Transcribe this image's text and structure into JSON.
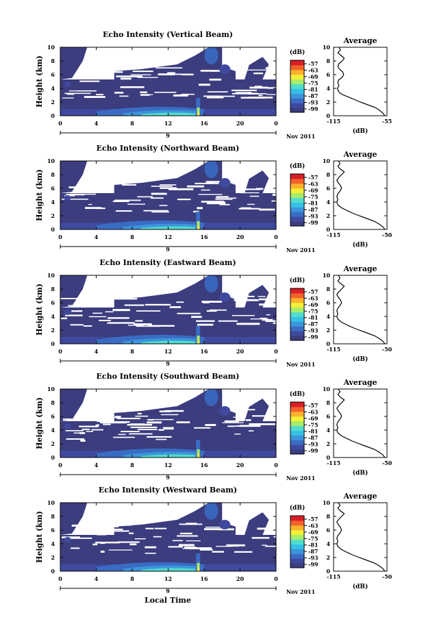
{
  "date_label": "Nov 2011",
  "x_axis_title": "Local Time",
  "colors": {
    "background": "#3b3d7e",
    "scale": [
      "#3b3d7e",
      "#3f4a9e",
      "#3a6cc4",
      "#3c95db",
      "#35c1e6",
      "#52dccd",
      "#a8ec6a",
      "#f4ef3a",
      "#fbb22b",
      "#f4622c",
      "#d81f26"
    ]
  },
  "chart_data": [
    {
      "type": "heatmap",
      "title": "Echo Intensity (Vertical Beam)",
      "ylabel": "Height (km)",
      "xlabel": "",
      "xlim": [
        0,
        24
      ],
      "ylim": [
        0,
        10
      ],
      "xticks": [
        "0",
        "4",
        "8",
        "12",
        "16",
        "20",
        "0"
      ],
      "yticks": [
        "0",
        "2",
        "4",
        "6",
        "8",
        "10"
      ],
      "secondary_axis_label": "9",
      "colorbar": {
        "label": "(dB)",
        "ticks": [
          "-57",
          "-63",
          "-69",
          "-75",
          "-81",
          "-87",
          "-93",
          "-99"
        ]
      },
      "profile": {
        "title": "Average",
        "xlabel": "(dB)",
        "xticks": [
          "-115",
          "-55"
        ],
        "xlim": [
          -115,
          -55
        ],
        "yticks": [
          "0",
          "2",
          "4",
          "6",
          "8",
          "10"
        ]
      }
    },
    {
      "type": "heatmap",
      "title": "Echo Intensity (Northward Beam)",
      "ylabel": "Height (km)",
      "xlabel": "",
      "xlim": [
        0,
        24
      ],
      "ylim": [
        0,
        10
      ],
      "xticks": [
        "0",
        "4",
        "8",
        "12",
        "16",
        "20",
        "0"
      ],
      "yticks": [
        "0",
        "2",
        "4",
        "6",
        "8",
        "10"
      ],
      "secondary_axis_label": "9",
      "colorbar": {
        "label": "(dB)",
        "ticks": [
          "-57",
          "-63",
          "-69",
          "-75",
          "-81",
          "-87",
          "-93",
          "-99"
        ]
      },
      "profile": {
        "title": "Average",
        "xlabel": "(dB)",
        "xticks": [
          "-115",
          "-50"
        ],
        "xlim": [
          -115,
          -50
        ],
        "yticks": [
          "0",
          "2",
          "4",
          "6",
          "8",
          "10"
        ]
      }
    },
    {
      "type": "heatmap",
      "title": "Echo Intensity (Eastward Beam)",
      "ylabel": "Height (km)",
      "xlabel": "",
      "xlim": [
        0,
        24
      ],
      "ylim": [
        0,
        10
      ],
      "xticks": [
        "0",
        "4",
        "8",
        "12",
        "16",
        "20",
        "0"
      ],
      "yticks": [
        "0",
        "2",
        "4",
        "6",
        "8",
        "10"
      ],
      "secondary_axis_label": "9",
      "colorbar": {
        "label": "(dB)",
        "ticks": [
          "-57",
          "-63",
          "-69",
          "-75",
          "-81",
          "-87",
          "-93",
          "-99"
        ]
      },
      "profile": {
        "title": "Average",
        "xlabel": "(dB)",
        "xticks": [
          "-115",
          "-50"
        ],
        "xlim": [
          -115,
          -50
        ],
        "yticks": [
          "0",
          "2",
          "4",
          "6",
          "8",
          "10"
        ]
      }
    },
    {
      "type": "heatmap",
      "title": "Echo Intensity (Southward Beam)",
      "ylabel": "Height (km)",
      "xlabel": "",
      "xlim": [
        0,
        24
      ],
      "ylim": [
        0,
        10
      ],
      "xticks": [
        "0",
        "4",
        "8",
        "12",
        "16",
        "20",
        "0"
      ],
      "yticks": [
        "0",
        "2",
        "4",
        "6",
        "8",
        "10"
      ],
      "secondary_axis_label": "9",
      "colorbar": {
        "label": "(dB)",
        "ticks": [
          "-57",
          "-63",
          "-69",
          "-75",
          "-81",
          "-87",
          "-93",
          "-99"
        ]
      },
      "profile": {
        "title": "Average",
        "xlabel": "(dB)",
        "xticks": [
          "-115",
          "-50"
        ],
        "xlim": [
          -115,
          -50
        ],
        "yticks": [
          "0",
          "2",
          "4",
          "6",
          "8",
          "10"
        ]
      }
    },
    {
      "type": "heatmap",
      "title": "Echo Intensity (Westward Beam)",
      "ylabel": "Height (km)",
      "xlabel": "",
      "xlim": [
        0,
        24
      ],
      "ylim": [
        0,
        10
      ],
      "xticks": [
        "0",
        "4",
        "8",
        "12",
        "16",
        "20",
        "0"
      ],
      "yticks": [
        "0",
        "2",
        "4",
        "6",
        "8",
        "10"
      ],
      "secondary_axis_label": "9",
      "colorbar": {
        "label": "(dB)",
        "ticks": [
          "-57",
          "-63",
          "-69",
          "-75",
          "-81",
          "-87",
          "-93",
          "-99"
        ]
      },
      "profile": {
        "title": "Average",
        "xlabel": "(dB)",
        "xticks": [
          "-115",
          "-50"
        ],
        "xlim": [
          -115,
          -50
        ],
        "yticks": [
          "0",
          "2",
          "4",
          "6",
          "8",
          "10"
        ]
      }
    }
  ]
}
